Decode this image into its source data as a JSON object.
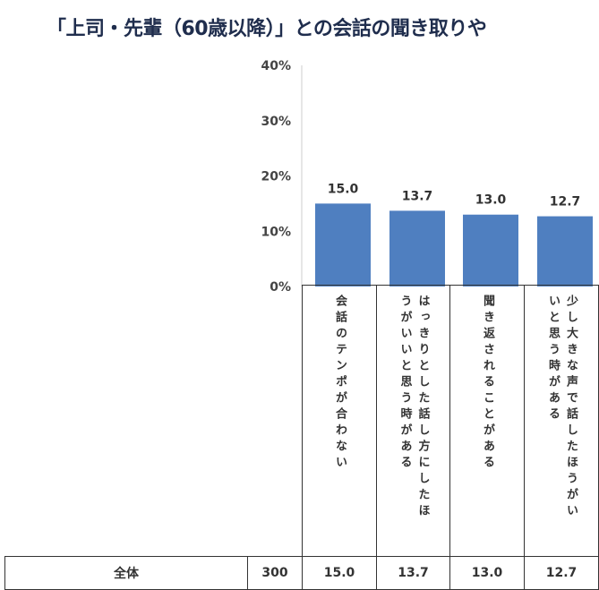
{
  "title": "「上司・先輩（60歳以降）」との会話の聞き取りや",
  "chart_data": {
    "type": "bar",
    "categories": [
      "会話のテンポが合わない",
      "はっきりとした話し方にしたほうがいいと思う時がある",
      "聞き返されることがある",
      "少し大きな声で話したほうがいいと思う時がある"
    ],
    "values": [
      15.0,
      13.7,
      13.0,
      12.7
    ],
    "value_labels": [
      "15.0",
      "13.7",
      "13.0",
      "12.7"
    ],
    "ylim": [
      0,
      40
    ],
    "yticks": [
      "0%",
      "10%",
      "20%",
      "30%",
      "40%"
    ],
    "bar_color": "#4f7fc0",
    "grid": false
  },
  "table": {
    "row_label": "全体",
    "n": "300",
    "values": [
      "15.0",
      "13.7",
      "13.0",
      "12.7"
    ]
  }
}
